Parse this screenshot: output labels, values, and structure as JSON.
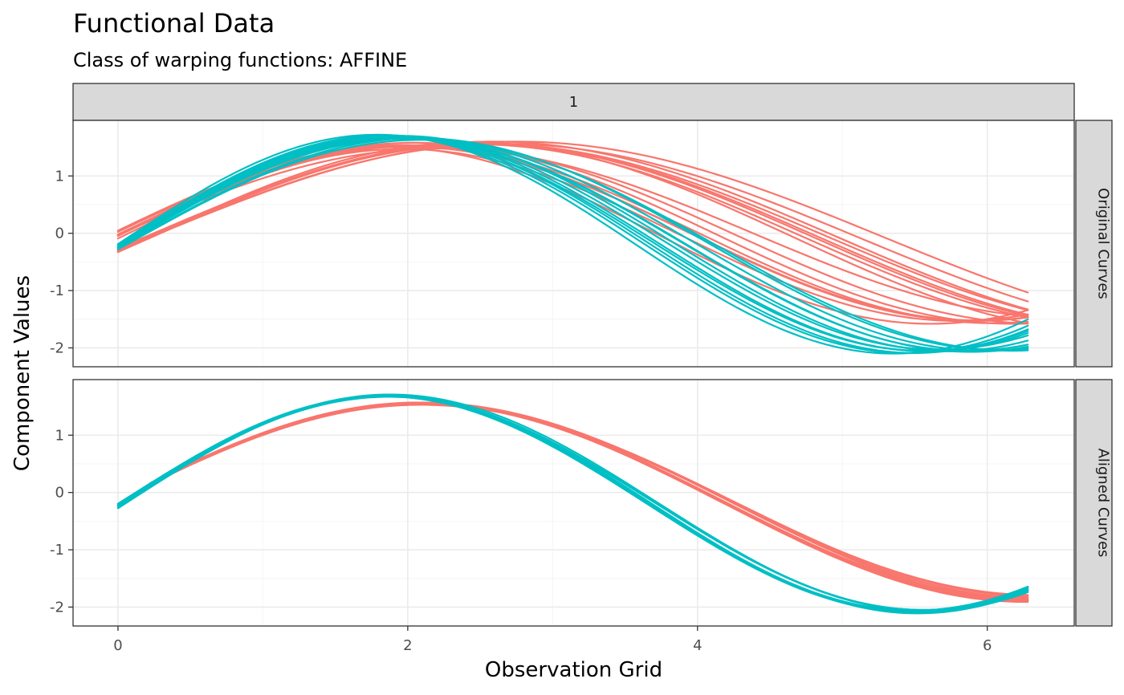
{
  "chart_data": {
    "type": "line",
    "title": "Functional Data",
    "subtitle": "Class of warping functions: AFFINE",
    "xlabel": "Observation Grid",
    "ylabel": "Component Values",
    "xlim": [
      -0.31,
      6.6
    ],
    "ylim": [
      -2.33,
      1.97
    ],
    "x_ticks": [
      0,
      2,
      4,
      6
    ],
    "x_tick_labels": [
      "0",
      "2",
      "4",
      "6"
    ],
    "y_ticks": [
      -2,
      -1,
      0,
      1
    ],
    "y_tick_labels": [
      "-2",
      "-1",
      "0",
      "1"
    ],
    "grid": true,
    "legend": "none",
    "facet_column": "1",
    "panels": [
      {
        "label": "Original Curves",
        "groups": [
          {
            "color": "#F8766D",
            "curves": [
              {
                "amplitude": 1.55,
                "omega": 0.78,
                "phase": 0.0,
                "offset": -0.02,
                "x_start": 0,
                "x_end": 6.28
              },
              {
                "amplitude": 1.52,
                "omega": 0.8,
                "phase": 0.03,
                "offset": -0.01,
                "x_start": 0,
                "x_end": 6.28
              },
              {
                "amplitude": 1.58,
                "omega": 0.76,
                "phase": -0.02,
                "offset": 0.0,
                "x_start": 0,
                "x_end": 6.28
              },
              {
                "amplitude": 1.5,
                "omega": 0.82,
                "phase": 0.05,
                "offset": -0.03,
                "x_start": 0,
                "x_end": 6.28
              },
              {
                "amplitude": 1.56,
                "omega": 0.74,
                "phase": 0.01,
                "offset": -0.02,
                "x_start": 0,
                "x_end": 6.28
              },
              {
                "amplitude": 1.53,
                "omega": 0.79,
                "phase": -0.03,
                "offset": 0.01,
                "x_start": 0,
                "x_end": 6.28
              },
              {
                "amplitude": 1.48,
                "omega": 0.72,
                "phase": 0.02,
                "offset": 0.0,
                "x_start": 0,
                "x_end": 6.28
              },
              {
                "amplitude": 1.54,
                "omega": 0.84,
                "phase": 0.0,
                "offset": -0.04,
                "x_start": 0,
                "x_end": 6.28
              },
              {
                "amplitude": 1.63,
                "omega": 0.68,
                "phase": 0.22,
                "offset": -0.07,
                "x_start": 0,
                "x_end": 6.28
              },
              {
                "amplitude": 1.66,
                "omega": 0.66,
                "phase": 0.2,
                "offset": -0.06,
                "x_start": 0,
                "x_end": 6.28
              },
              {
                "amplitude": 1.6,
                "omega": 0.7,
                "phase": 0.23,
                "offset": -0.05,
                "x_start": 0,
                "x_end": 6.28
              },
              {
                "amplitude": 1.64,
                "omega": 0.64,
                "phase": 0.21,
                "offset": -0.08,
                "x_start": 0,
                "x_end": 6.28
              },
              {
                "amplitude": 1.62,
                "omega": 0.69,
                "phase": 0.24,
                "offset": -0.06,
                "x_start": 0,
                "x_end": 6.28
              },
              {
                "amplitude": 1.67,
                "omega": 0.62,
                "phase": 0.22,
                "offset": -0.07,
                "x_start": 0,
                "x_end": 6.28
              },
              {
                "amplitude": 1.61,
                "omega": 0.67,
                "phase": 0.2,
                "offset": -0.05,
                "x_start": 0,
                "x_end": 6.28
              },
              {
                "amplitude": 1.65,
                "omega": 0.71,
                "phase": 0.23,
                "offset": -0.06,
                "x_start": 0,
                "x_end": 6.28
              }
            ]
          },
          {
            "color": "#00BFC4",
            "curves": [
              {
                "amplitude": 1.88,
                "omega": 0.85,
                "phase": 0.04,
                "offset": -0.18,
                "x_start": 0,
                "x_end": 6.28
              },
              {
                "amplitude": 1.9,
                "omega": 0.86,
                "phase": 0.02,
                "offset": -0.19,
                "x_start": 0,
                "x_end": 6.28
              },
              {
                "amplitude": 1.86,
                "omega": 0.84,
                "phase": 0.05,
                "offset": -0.17,
                "x_start": 0,
                "x_end": 6.28
              },
              {
                "amplitude": 1.89,
                "omega": 0.87,
                "phase": 0.03,
                "offset": -0.2,
                "x_start": 0,
                "x_end": 6.28
              },
              {
                "amplitude": 1.87,
                "omega": 0.85,
                "phase": 0.01,
                "offset": -0.18,
                "x_start": 0,
                "x_end": 6.28
              },
              {
                "amplitude": 1.91,
                "omega": 0.88,
                "phase": 0.0,
                "offset": -0.19,
                "x_start": 0,
                "x_end": 6.28
              },
              {
                "amplitude": 1.88,
                "omega": 0.83,
                "phase": 0.06,
                "offset": -0.18,
                "x_start": 0,
                "x_end": 6.28
              },
              {
                "amplitude": 1.85,
                "omega": 0.81,
                "phase": 0.04,
                "offset": -0.2,
                "x_start": 0,
                "x_end": 6.28
              },
              {
                "amplitude": 1.86,
                "omega": 0.79,
                "phase": 0.02,
                "offset": -0.19,
                "x_start": 0,
                "x_end": 6.28
              },
              {
                "amplitude": 1.84,
                "omega": 0.77,
                "phase": 0.05,
                "offset": -0.21,
                "x_start": 0,
                "x_end": 6.28
              },
              {
                "amplitude": 1.87,
                "omega": 0.8,
                "phase": 0.0,
                "offset": -0.2,
                "x_start": 0,
                "x_end": 6.28
              },
              {
                "amplitude": 1.85,
                "omega": 0.78,
                "phase": 0.06,
                "offset": -0.19,
                "x_start": 0,
                "x_end": 6.28
              }
            ]
          }
        ]
      },
      {
        "label": "Aligned Curves",
        "groups": [
          {
            "color": "#F8766D",
            "curves": [
              {
                "amplitude": 1.7,
                "omega": 0.74,
                "phase": -0.02,
                "offset": -0.15,
                "x_start": 0.2,
                "x_end": 6.28
              },
              {
                "amplitude": 1.72,
                "omega": 0.75,
                "phase": -0.03,
                "offset": -0.16,
                "x_start": 0.22,
                "x_end": 6.28
              },
              {
                "amplitude": 1.68,
                "omega": 0.74,
                "phase": -0.01,
                "offset": -0.14,
                "x_start": 0.24,
                "x_end": 6.28
              },
              {
                "amplitude": 1.74,
                "omega": 0.75,
                "phase": -0.02,
                "offset": -0.17,
                "x_start": 0.26,
                "x_end": 6.28
              },
              {
                "amplitude": 1.66,
                "omega": 0.74,
                "phase": -0.03,
                "offset": -0.13,
                "x_start": 0.28,
                "x_end": 6.28
              },
              {
                "amplitude": 1.71,
                "omega": 0.75,
                "phase": -0.01,
                "offset": -0.15,
                "x_start": 0.3,
                "x_end": 6.28
              },
              {
                "amplitude": 1.73,
                "omega": 0.74,
                "phase": -0.02,
                "offset": -0.16,
                "x_start": 0.32,
                "x_end": 6.28
              },
              {
                "amplitude": 1.69,
                "omega": 0.75,
                "phase": -0.03,
                "offset": -0.14,
                "x_start": 0.34,
                "x_end": 6.28
              },
              {
                "amplitude": 1.7,
                "omega": 0.74,
                "phase": -0.02,
                "offset": -0.15,
                "x_start": 0.36,
                "x_end": 6.1
              },
              {
                "amplitude": 1.72,
                "omega": 0.75,
                "phase": -0.01,
                "offset": -0.16,
                "x_start": 0.38,
                "x_end": 6.28
              }
            ]
          },
          {
            "color": "#00BFC4",
            "curves": [
              {
                "amplitude": 1.88,
                "omega": 0.86,
                "phase": 0.02,
                "offset": -0.19,
                "x_start": 0,
                "x_end": 6.28
              },
              {
                "amplitude": 1.89,
                "omega": 0.86,
                "phase": 0.03,
                "offset": -0.2,
                "x_start": 0,
                "x_end": 6.28
              },
              {
                "amplitude": 1.87,
                "omega": 0.85,
                "phase": 0.01,
                "offset": -0.18,
                "x_start": 0,
                "x_end": 6.28
              },
              {
                "amplitude": 1.9,
                "omega": 0.86,
                "phase": 0.04,
                "offset": -0.21,
                "x_start": 0,
                "x_end": 6.28
              },
              {
                "amplitude": 1.86,
                "omega": 0.85,
                "phase": 0.02,
                "offset": -0.19,
                "x_start": 0,
                "x_end": 6.28
              },
              {
                "amplitude": 1.88,
                "omega": 0.86,
                "phase": 0.0,
                "offset": -0.2,
                "x_start": 0,
                "x_end": 6.28
              },
              {
                "amplitude": 1.89,
                "omega": 0.85,
                "phase": 0.03,
                "offset": -0.18,
                "x_start": 0,
                "x_end": 6.28
              },
              {
                "amplitude": 1.87,
                "omega": 0.86,
                "phase": 0.01,
                "offset": -0.19,
                "x_start": 0,
                "x_end": 6.28
              }
            ]
          }
        ]
      }
    ]
  }
}
